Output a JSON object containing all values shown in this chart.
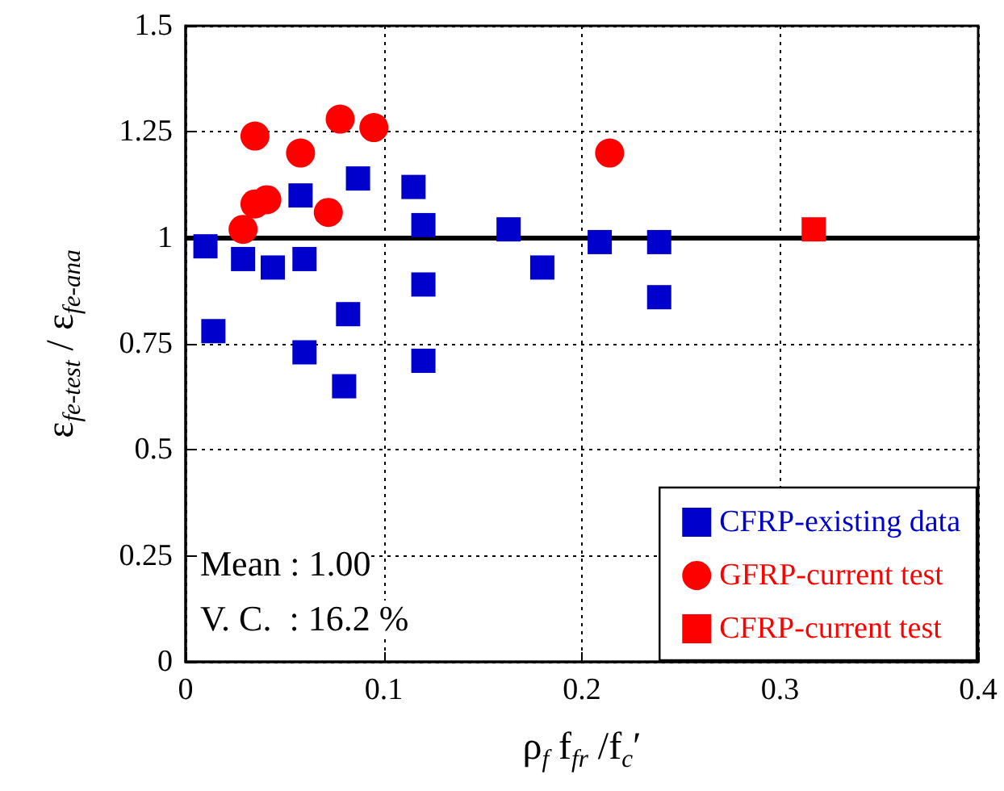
{
  "chart_data": {
    "type": "scatter",
    "xlabel": "ρ$_{f}$ f$_{fr}$ /f$_{c}$′",
    "ylabel": "ε$_{fe-test}$ / ε$_{fe-ana}$",
    "xlim": [
      0,
      0.4
    ],
    "xticks": [
      0,
      0.1,
      0.2,
      0.3,
      0.4
    ],
    "ylim": [
      0,
      1.5
    ],
    "yticks": [
      0,
      0.25,
      0.5,
      0.75,
      1,
      1.25,
      1.5
    ],
    "grid": true,
    "line_style": "dotted",
    "legend": "bottom right",
    "series": [
      {
        "name": "CFRP-existing data",
        "color": "#0000cc",
        "marker": "square",
        "x": [
          0.01,
          0.014,
          0.029,
          0.044,
          0.06,
          0.058,
          0.06,
          0.082,
          0.08,
          0.087,
          0.115,
          0.12,
          0.12,
          0.12,
          0.163,
          0.18,
          0.209,
          0.239,
          0.239
        ],
        "values": [
          0.98,
          0.78,
          0.95,
          0.93,
          0.95,
          1.1,
          0.73,
          0.82,
          0.65,
          1.14,
          1.12,
          1.03,
          0.89,
          0.71,
          1.02,
          0.93,
          0.99,
          0.99,
          0.86
        ]
      },
      {
        "name": "GFRP-current test",
        "color": "#ff0000",
        "marker": "circle",
        "x": [
          0.035,
          0.078,
          0.095,
          0.058,
          0.035,
          0.041,
          0.072,
          0.029,
          0.214
        ],
        "values": [
          1.24,
          1.28,
          1.26,
          1.2,
          1.08,
          1.09,
          1.06,
          1.02,
          1.2
        ]
      },
      {
        "name": "CFRP-current test",
        "color": "#ff0000",
        "marker": "square",
        "x": [
          0.317
        ],
        "values": [
          1.02
        ]
      }
    ],
    "ref_lines": [
      {
        "axis": "y",
        "value": 1,
        "color": "#000000",
        "line_style": "solid"
      }
    ],
    "annotations": [
      "Mean : 1.00",
      "V. C.  : 16.2 %"
    ]
  }
}
